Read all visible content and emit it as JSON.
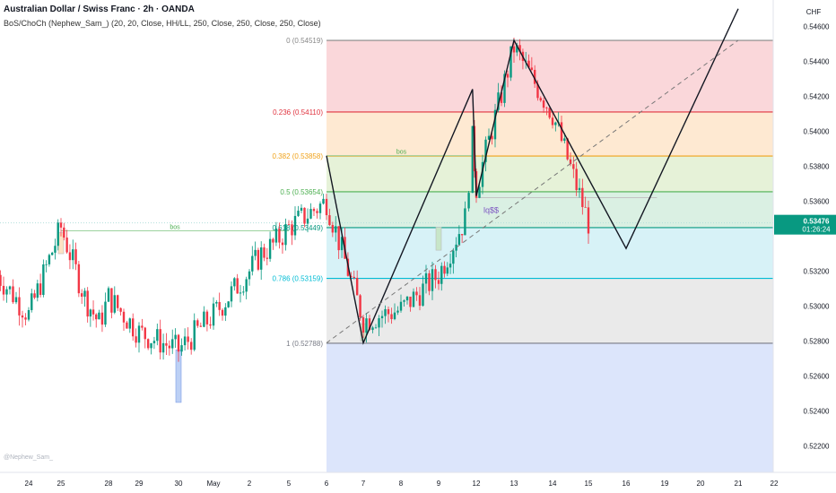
{
  "header": {
    "title": "Australian Dollar / Swiss Franc · 2h · OANDA",
    "indicator": "BoS/ChoCh (Nephew_Sam_) (20, 20, Close, HH/LL, 250, Close, 250, Close, 250, Close)"
  },
  "watermark": "@Nephew_Sam_",
  "colors": {
    "up": "#089981",
    "down": "#f23645",
    "fib0": "#f8c9ce",
    "fib236": "#fde2c3",
    "fib382": "#ddeecb",
    "fib5": "#cdebd9",
    "fib618": "#c9eef4",
    "fib786": "#e3e3e3",
    "fib1": "#d0dcf9",
    "price_tag": "#089981"
  },
  "chart_data": {
    "type": "candlestick",
    "y_axis": {
      "unit_label": "CHF",
      "ylim": [
        0.5205,
        0.5475
      ],
      "tick_labels": [
        "0.54600",
        "0.54400",
        "0.54200",
        "0.54000",
        "0.53800",
        "0.53600",
        "0.53200",
        "0.53000",
        "0.52800",
        "0.52600",
        "0.52400",
        "0.52200"
      ]
    },
    "x_axis": {
      "tick_labels": [
        "24",
        "25",
        "28",
        "29",
        "30",
        "May",
        "2",
        "5",
        "6",
        "7",
        "8",
        "9",
        "12",
        "13",
        "14",
        "15",
        "16",
        "19",
        "20",
        "21",
        "22"
      ]
    },
    "current_price": {
      "value": "0.53476",
      "countdown": "01:26:24"
    },
    "fib_levels": [
      {
        "label": "0 (0.54519)",
        "value": 0.54519
      },
      {
        "label": "0.236 (0.54110)",
        "value": 0.5411
      },
      {
        "label": "0.382 (0.53858)",
        "value": 0.53858
      },
      {
        "label": "0.5 (0.53654)",
        "value": 0.53654
      },
      {
        "label": "0.618 (0.53449)",
        "value": 0.53449
      },
      {
        "label": "0.786 (0.53159)",
        "value": 0.53159
      },
      {
        "label": "1 (0.52788)",
        "value": 0.52788
      }
    ],
    "annotations": [
      {
        "text": "bos"
      },
      {
        "text": "bos"
      },
      {
        "text": "lq$$"
      }
    ],
    "anchors": {
      "start": {
        "date": "Apr 23",
        "price": 0.5318
      },
      "fib_start": "May 6",
      "last_candle": "May 15",
      "right_edge": "May 22"
    },
    "candle_step_days": 0.25,
    "close_path": [
      {
        "date": "Apr 23",
        "close": 0.5318
      },
      {
        "date": "Apr 24",
        "close": 0.5295
      },
      {
        "date": "Apr 25",
        "close": 0.5345
      },
      {
        "date": "Apr 26",
        "close": 0.5305
      },
      {
        "date": "Apr 27",
        "close": 0.529
      },
      {
        "date": "Apr 28",
        "close": 0.5305
      },
      {
        "date": "Apr 29",
        "close": 0.5285
      },
      {
        "date": "Apr 30",
        "close": 0.5275
      },
      {
        "date": "May 1",
        "close": 0.5295
      },
      {
        "date": "May 2",
        "close": 0.532
      },
      {
        "date": "May 3",
        "close": 0.533
      },
      {
        "date": "May 4",
        "close": 0.5335
      },
      {
        "date": "May 5",
        "close": 0.5345
      },
      {
        "date": "May 6",
        "close": 0.536
      },
      {
        "date": "May 7",
        "close": 0.5292
      },
      {
        "date": "May 8",
        "close": 0.5298
      },
      {
        "date": "May 9",
        "close": 0.5318
      },
      {
        "date": "May 10",
        "close": 0.535
      },
      {
        "date": "May 11",
        "close": 0.5395
      },
      {
        "date": "May 12",
        "close": 0.5368
      },
      {
        "date": "May 13",
        "close": 0.5448
      },
      {
        "date": "May 14",
        "close": 0.541
      },
      {
        "date": "May 15",
        "close": 0.5348
      }
    ],
    "projection_zigzag": [
      {
        "date": "May 6",
        "price": 0.5386
      },
      {
        "date": "May 7",
        "price": 0.5279
      },
      {
        "date": "May 11",
        "price": 0.5424
      },
      {
        "date": "May 12",
        "price": 0.5363
      },
      {
        "date": "May 13",
        "price": 0.5452
      },
      {
        "date": "May 16",
        "price": 0.5333
      },
      {
        "date": "May 21",
        "price": 0.547
      }
    ],
    "trend_dashed": [
      {
        "date": "May 6",
        "price": 0.5279
      },
      {
        "date": "May 21",
        "price": 0.5452
      }
    ],
    "liquidity_line": {
      "from": "May 12",
      "to": "May 18",
      "price": 0.5362
    },
    "bos_lines": [
      {
        "from": "Apr 25",
        "to": "May 5",
        "price": 0.5343
      },
      {
        "from": "May 6",
        "to": "May 12",
        "price": 0.5386
      }
    ],
    "volume_boxes": [
      {
        "date": "Apr 25",
        "from": 0.533,
        "to": 0.5342
      },
      {
        "date": "Apr 30",
        "from": 0.5245,
        "to": 0.5275
      },
      {
        "date": "May 7",
        "from": 0.528,
        "to": 0.529
      },
      {
        "date": "May 9",
        "from": 0.5332,
        "to": 0.5345
      }
    ]
  }
}
